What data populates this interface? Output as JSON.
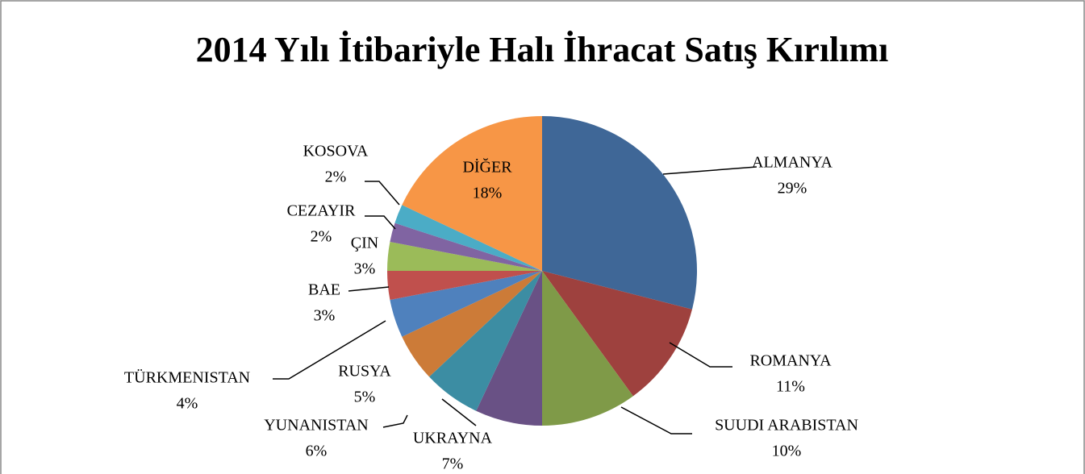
{
  "chart_data": {
    "type": "pie",
    "title": "2014 Yılı İtibariyle Halı İhracat Satış Kırılımı",
    "categories": [
      "ALMANYA",
      "ROMANYA",
      "SUUDI ARABISTAN",
      "UKRAYNA",
      "YUNANISTAN",
      "RUSYA",
      "TÜRKMENISTAN",
      "BAE",
      "ÇIN",
      "CEZAYIR",
      "KOSOVA",
      "DİĞER"
    ],
    "values": [
      29,
      11,
      10,
      7,
      6,
      5,
      4,
      3,
      3,
      2,
      2,
      18
    ],
    "value_labels": [
      "29%",
      "11%",
      "10%",
      "7%",
      "6%",
      "5%",
      "4%",
      "3%",
      "3%",
      "2%",
      "2%",
      "18%"
    ],
    "colors": [
      "#3f6797",
      "#9e413e",
      "#7f9a48",
      "#695185",
      "#3c8da3",
      "#cc7b38",
      "#4f81bd",
      "#c0504d",
      "#9bbb59",
      "#8064a2",
      "#4bacc6",
      "#f79646"
    ]
  }
}
